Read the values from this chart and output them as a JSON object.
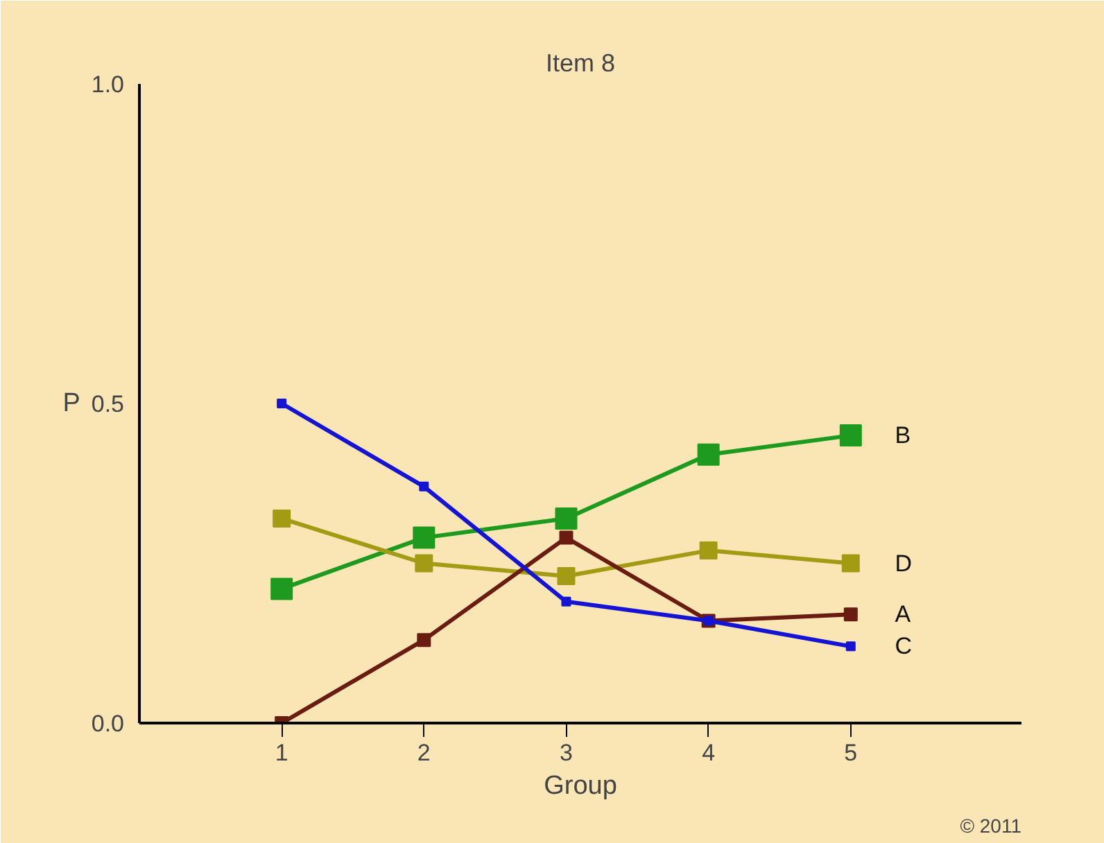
{
  "chart_data": {
    "type": "line",
    "title": "Item 8",
    "xlabel": "Group",
    "ylabel": "P",
    "x": [
      1,
      2,
      3,
      4,
      5
    ],
    "xlim": [
      0,
      6.2
    ],
    "xticks": [
      1,
      2,
      3,
      4,
      5
    ],
    "ylim": [
      0,
      1.0
    ],
    "yticks": [
      {
        "value": 0,
        "label": "0.0"
      },
      {
        "value": 0.5,
        "label": "0.5"
      },
      {
        "value": 1.0,
        "label": "1.0"
      }
    ],
    "series": [
      {
        "name": "B",
        "color": "#1e9a1e",
        "values": [
          0.21,
          0.29,
          0.32,
          0.42,
          0.45
        ]
      },
      {
        "name": "D",
        "color": "#a39b14",
        "values": [
          0.32,
          0.25,
          0.23,
          0.27,
          0.25
        ]
      },
      {
        "name": "A",
        "color": "#6b1c10",
        "values": [
          0.0,
          0.13,
          0.29,
          0.16,
          0.17
        ]
      },
      {
        "name": "C",
        "color": "#1414d2",
        "values": [
          0.5,
          0.37,
          0.19,
          0.16,
          0.12
        ]
      }
    ],
    "marker": "square",
    "grid": false,
    "annotations": [
      "© 2011"
    ]
  }
}
